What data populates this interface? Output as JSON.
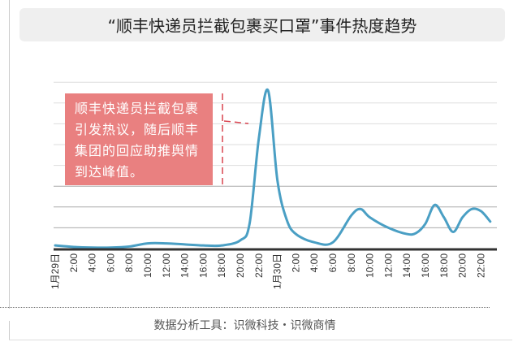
{
  "title": "“顺丰快递员拦截包裹买口罩”事件热度趋势",
  "annotation": "顺丰快递员拦截包裹引发热议，随后顺丰集团的回应助推舆情到达峰值。",
  "footer": "数据分析工具：识微科技・识微商情",
  "colors": {
    "line": "#4a9fc4",
    "annotation_bg": "#e98080",
    "marker": "#d9434f",
    "axis": "#333333"
  },
  "chart_data": {
    "type": "line",
    "title": "“顺丰快递员拦截包裹买口罩”事件热度趋势",
    "xlabel": "",
    "ylabel": "",
    "x_tick_labels": [
      "1月29日",
      "2:00",
      "4:00",
      "6:00",
      "8:00",
      "10:00",
      "12:00",
      "14:00",
      "16:00",
      "18:00",
      "20:00",
      "22:00",
      "1月30日",
      "2:00",
      "4:00",
      "6:00",
      "8:00",
      "10:00",
      "12:00",
      "14:00",
      "16:00",
      "18:00",
      "20:00",
      "22:00"
    ],
    "grid": true,
    "y_axis_labels_shown": false,
    "series": [
      {
        "hours": [
          0,
          2,
          4,
          6,
          8,
          10,
          12,
          14,
          16,
          18,
          20,
          21,
          22,
          23,
          24,
          25,
          26,
          28,
          30,
          32,
          33,
          34,
          36,
          38,
          39,
          40,
          41,
          42,
          43,
          44,
          45,
          46,
          47
        ],
        "values": [
          0.15,
          0.08,
          0.05,
          0.05,
          0.1,
          0.25,
          0.25,
          0.2,
          0.15,
          0.15,
          0.4,
          1.2,
          5.3,
          7.6,
          3.3,
          1.4,
          0.7,
          0.3,
          0.3,
          1.6,
          1.9,
          1.5,
          1.0,
          0.7,
          0.75,
          1.2,
          2.1,
          1.5,
          0.8,
          1.5,
          1.9,
          1.8,
          1.3
        ]
      }
    ]
  }
}
